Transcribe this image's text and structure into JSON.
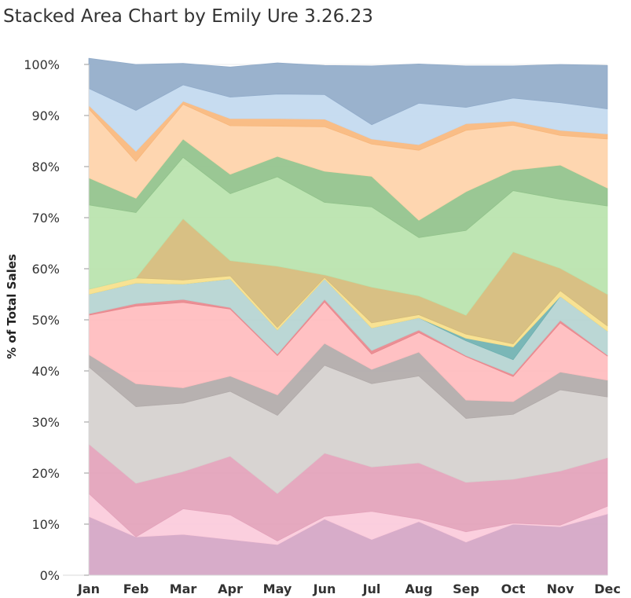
{
  "chart_data": {
    "type": "area",
    "stacked": true,
    "title": "Stacked Area Chart by Emily Ure 3.26.23",
    "xlabel": "",
    "ylabel": "% of Total Sales",
    "categories": [
      "Jan",
      "Feb",
      "Mar",
      "Apr",
      "May",
      "Jun",
      "Jul",
      "Aug",
      "Sep",
      "Oct",
      "Nov",
      "Dec"
    ],
    "ylim": [
      0,
      100
    ],
    "yticks": [
      "0%",
      "10%",
      "20%",
      "30%",
      "40%",
      "50%",
      "60%",
      "70%",
      "80%",
      "90%",
      "100%"
    ],
    "grid": true,
    "series": [
      {
        "color": "#d4a5c4",
        "values": [
          11.5,
          7.5,
          8.0,
          7.0,
          6.0,
          11.0,
          7.0,
          10.5,
          6.5,
          10.0,
          9.5,
          12.0
        ]
      },
      {
        "color": "#fbcbdb",
        "values": [
          4.5,
          0.0,
          5.0,
          4.8,
          0.7,
          0.5,
          5.5,
          0.5,
          2.0,
          0.2,
          0.3,
          1.5
        ]
      },
      {
        "color": "#e3a2ba",
        "values": [
          9.7,
          10.5,
          7.3,
          11.5,
          9.3,
          12.4,
          8.7,
          11.0,
          9.7,
          8.6,
          10.6,
          9.5
        ]
      },
      {
        "color": "#d5d0ce",
        "values": [
          15.1,
          15.0,
          13.4,
          12.7,
          15.3,
          17.2,
          16.3,
          17.0,
          12.5,
          12.7,
          15.9,
          11.9
        ]
      },
      {
        "color": "#b1aaa9",
        "values": [
          2.4,
          4.5,
          3.0,
          3.0,
          4.0,
          4.3,
          2.8,
          4.7,
          3.6,
          2.5,
          3.5,
          3.3
        ]
      },
      {
        "color": "#ffbcbe",
        "values": [
          7.7,
          15.2,
          16.7,
          13.1,
          7.7,
          8.1,
          3.0,
          3.8,
          8.5,
          4.9,
          9.6,
          4.7
        ]
      },
      {
        "color": "#e8868c",
        "values": [
          0.3,
          0.5,
          0.6,
          0.3,
          0.3,
          0.5,
          0.7,
          0.5,
          0.2,
          0.4,
          0.5,
          0.2
        ]
      },
      {
        "color": "#b5d4d1",
        "values": [
          3.8,
          4.0,
          3.0,
          5.6,
          4.7,
          4.0,
          4.4,
          2.4,
          2.9,
          2.9,
          4.7,
          4.7
        ]
      },
      {
        "color": "#6fb1b1",
        "values": [
          0.0,
          0.0,
          0.0,
          0.0,
          0.0,
          0.0,
          0.0,
          0.0,
          0.5,
          2.5,
          0.0,
          0.0
        ]
      },
      {
        "color": "#f7df8a",
        "values": [
          1.0,
          1.0,
          0.8,
          0.6,
          0.5,
          0.3,
          1.0,
          0.6,
          0.8,
          0.6,
          1.1,
          1.0
        ]
      },
      {
        "color": "#d5bb7a",
        "values": [
          0.0,
          0.0,
          12.0,
          3.0,
          12.0,
          0.5,
          7.0,
          3.7,
          3.7,
          18.0,
          4.4,
          6.2
        ]
      },
      {
        "color": "#b8e3ad",
        "values": [
          16.5,
          12.8,
          12.0,
          13.1,
          17.5,
          14.2,
          15.7,
          11.4,
          16.6,
          12.0,
          13.5,
          17.3
        ]
      },
      {
        "color": "#91c28b",
        "values": [
          5.3,
          2.8,
          3.6,
          3.8,
          4.0,
          6.1,
          6.0,
          3.4,
          7.6,
          4.0,
          6.7,
          3.5
        ]
      },
      {
        "color": "#fed3a9",
        "values": [
          13.5,
          7.2,
          6.8,
          9.5,
          5.9,
          8.7,
          6.3,
          13.7,
          12.0,
          8.8,
          5.8,
          9.6
        ]
      },
      {
        "color": "#f8b77c",
        "values": [
          0.7,
          2.0,
          0.6,
          1.4,
          1.5,
          1.5,
          1.0,
          1.1,
          1.3,
          0.8,
          1.0,
          1.0
        ]
      },
      {
        "color": "#c2d9ef",
        "values": [
          3.3,
          8.0,
          3.2,
          4.2,
          4.8,
          4.8,
          2.8,
          8.1,
          3.2,
          4.5,
          5.4,
          4.9
        ]
      },
      {
        "color": "#91abc9",
        "values": [
          5.9,
          9.0,
          4.2,
          5.9,
          6.1,
          5.7,
          11.5,
          7.7,
          8.1,
          6.3,
          7.5,
          8.5
        ]
      }
    ]
  }
}
